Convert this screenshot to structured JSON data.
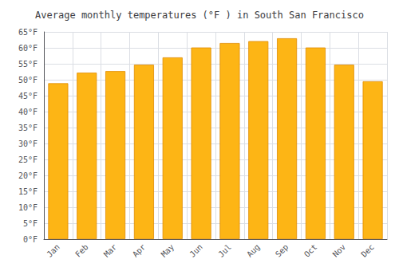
{
  "chart_data": {
    "type": "bar",
    "title": "Average monthly temperatures (°F ) in South San Francisco",
    "categories": [
      "Jan",
      "Feb",
      "Mar",
      "Apr",
      "May",
      "Jun",
      "Jul",
      "Aug",
      "Sep",
      "Oct",
      "Nov",
      "Dec"
    ],
    "values": [
      48.9,
      52.2,
      52.7,
      54.7,
      57.0,
      60.1,
      61.5,
      62.1,
      63.0,
      60.1,
      54.7,
      49.5
    ],
    "color": "#FDB515",
    "ylim": [
      0,
      65
    ],
    "yticks": [
      {
        "value": 0,
        "label": "0°F"
      },
      {
        "value": 5,
        "label": "5°F"
      },
      {
        "value": 10,
        "label": "10°F"
      },
      {
        "value": 15,
        "label": "15°F"
      },
      {
        "value": 20,
        "label": "20°F"
      },
      {
        "value": 25,
        "label": "25°F"
      },
      {
        "value": 30,
        "label": "30°F"
      },
      {
        "value": 35,
        "label": "35°F"
      },
      {
        "value": 40,
        "label": "40°F"
      },
      {
        "value": 45,
        "label": "45°F"
      },
      {
        "value": 50,
        "label": "50°F"
      },
      {
        "value": 55,
        "label": "55°F"
      },
      {
        "value": 60,
        "label": "60°F"
      },
      {
        "value": 65,
        "label": "65°F"
      }
    ],
    "grid": true
  }
}
